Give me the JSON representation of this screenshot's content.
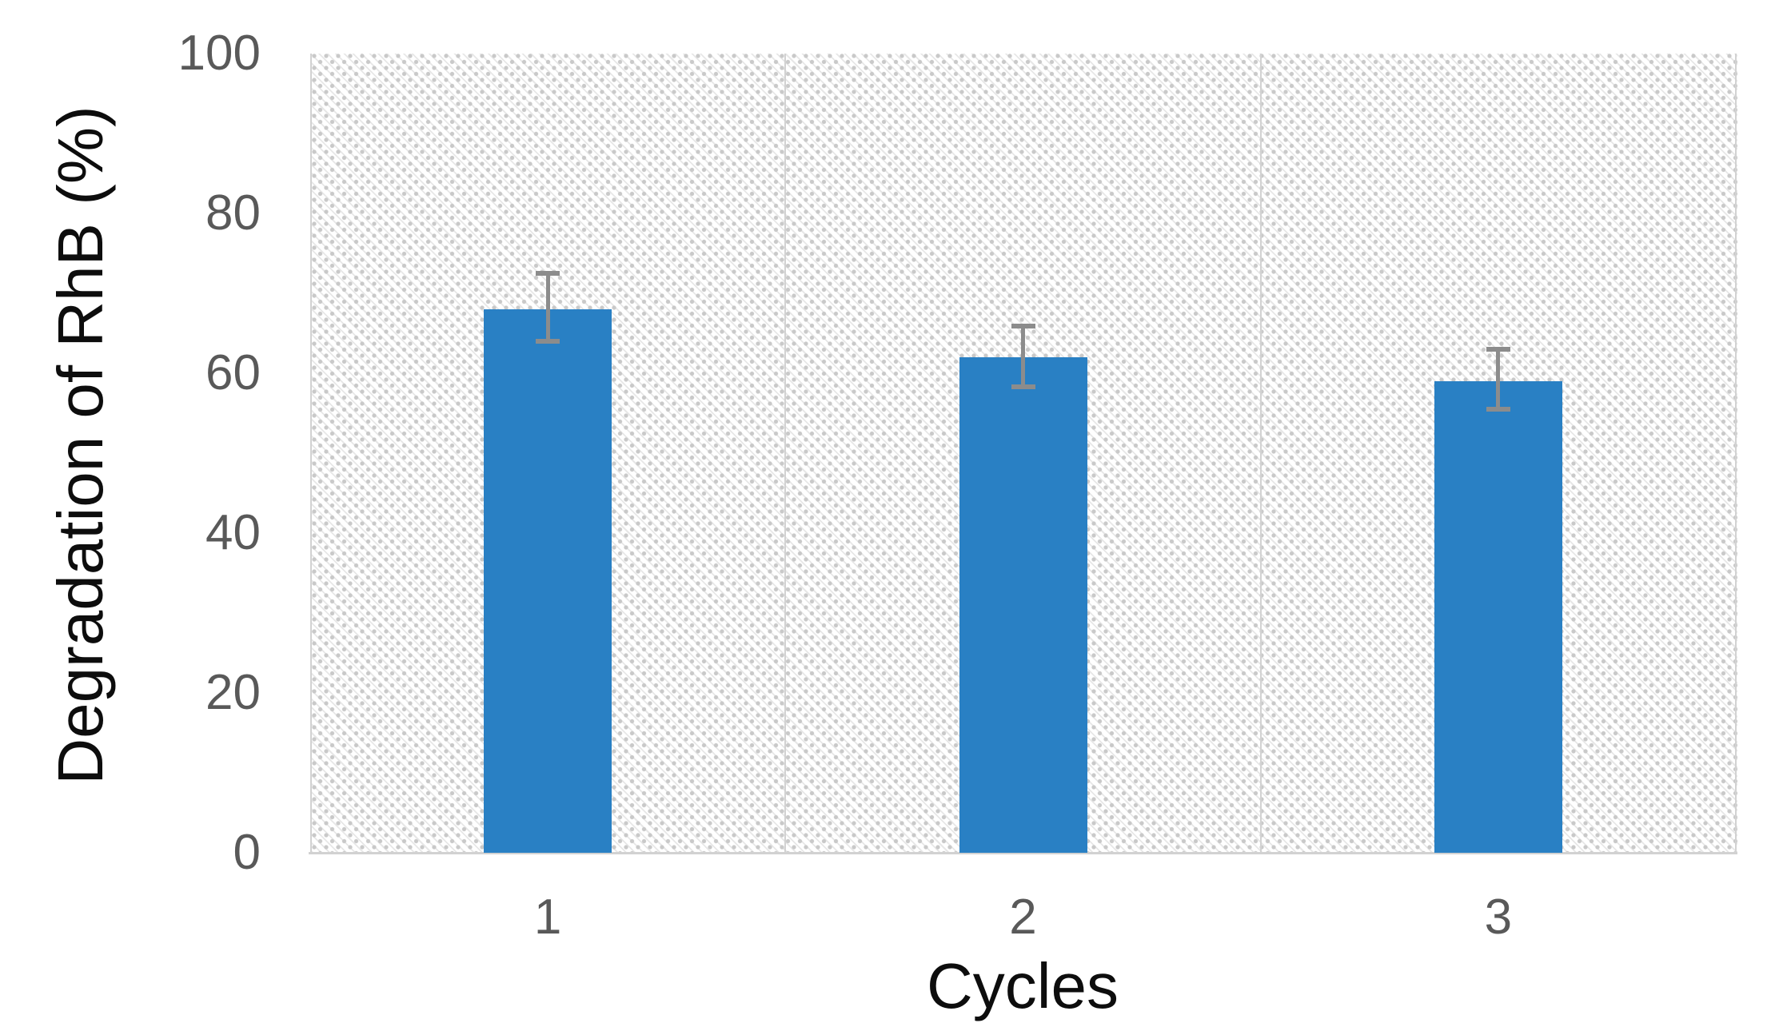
{
  "chart_data": {
    "type": "bar",
    "title": "",
    "xlabel": "Cycles",
    "ylabel": "Degradation of RhB (%)",
    "categories": [
      "1",
      "2",
      "3"
    ],
    "values": [
      68,
      62,
      59
    ],
    "error_bars": {
      "plus": [
        4.5,
        3.9,
        4.0
      ],
      "minus": [
        4.0,
        3.7,
        3.5
      ]
    },
    "series": [
      {
        "name": "Degradation of RhB",
        "values": [
          68,
          62,
          59
        ]
      }
    ],
    "ylim": [
      0,
      100
    ],
    "yticks": [
      0,
      20,
      40,
      60,
      80,
      100
    ],
    "legend": "none",
    "grid": "vertical-category-boundaries",
    "plot_background": "white-with-light-diagonal-dotted-hatch",
    "colors": {
      "bar": "#2980C4",
      "error_bar": "#8C8C8C",
      "gridline": "#D2D2D2",
      "tick_label": "#595959",
      "axis_title": "#0D0D0D",
      "hatch_dot": "#C9C9C9",
      "hatch_line": "#E7E7E7",
      "background": "#FFFFFF"
    }
  }
}
